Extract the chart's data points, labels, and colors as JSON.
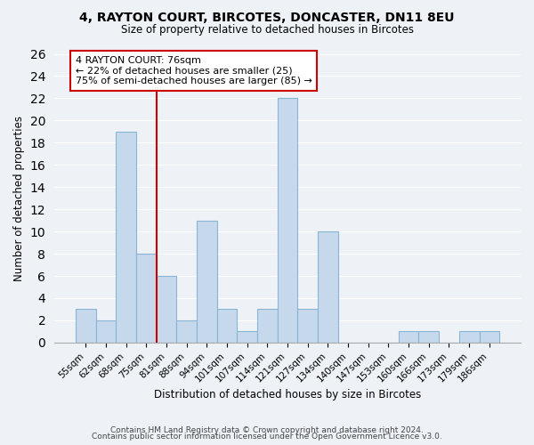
{
  "title": "4, RAYTON COURT, BIRCOTES, DONCASTER, DN11 8EU",
  "subtitle": "Size of property relative to detached houses in Bircotes",
  "xlabel": "Distribution of detached houses by size in Bircotes",
  "ylabel": "Number of detached properties",
  "bar_labels": [
    "55sqm",
    "62sqm",
    "68sqm",
    "75sqm",
    "81sqm",
    "88sqm",
    "94sqm",
    "101sqm",
    "107sqm",
    "114sqm",
    "121sqm",
    "127sqm",
    "134sqm",
    "140sqm",
    "147sqm",
    "153sqm",
    "160sqm",
    "166sqm",
    "173sqm",
    "179sqm",
    "186sqm"
  ],
  "bar_values": [
    3,
    2,
    19,
    8,
    6,
    2,
    11,
    3,
    1,
    3,
    22,
    3,
    10,
    0,
    0,
    0,
    1,
    1,
    0,
    1,
    1
  ],
  "bar_color": "#c5d8ec",
  "bar_edge_color": "#8ab4d4",
  "vline_index": 3,
  "vline_color": "#cc0000",
  "annotation_text": "4 RAYTON COURT: 76sqm\n← 22% of detached houses are smaller (25)\n75% of semi-detached houses are larger (85) →",
  "annotation_box_color": "white",
  "annotation_box_edge": "#cc0000",
  "ylim": [
    0,
    26
  ],
  "yticks": [
    0,
    2,
    4,
    6,
    8,
    10,
    12,
    14,
    16,
    18,
    20,
    22,
    24,
    26
  ],
  "footer1": "Contains HM Land Registry data © Crown copyright and database right 2024.",
  "footer2": "Contains public sector information licensed under the Open Government Licence v3.0.",
  "background_color": "#eef2f7",
  "grid_color": "#ffffff",
  "title_fontsize": 10,
  "subtitle_fontsize": 8.5,
  "tick_fontsize": 7.5,
  "axis_label_fontsize": 8.5,
  "annotation_fontsize": 8,
  "footer_fontsize": 6.5
}
